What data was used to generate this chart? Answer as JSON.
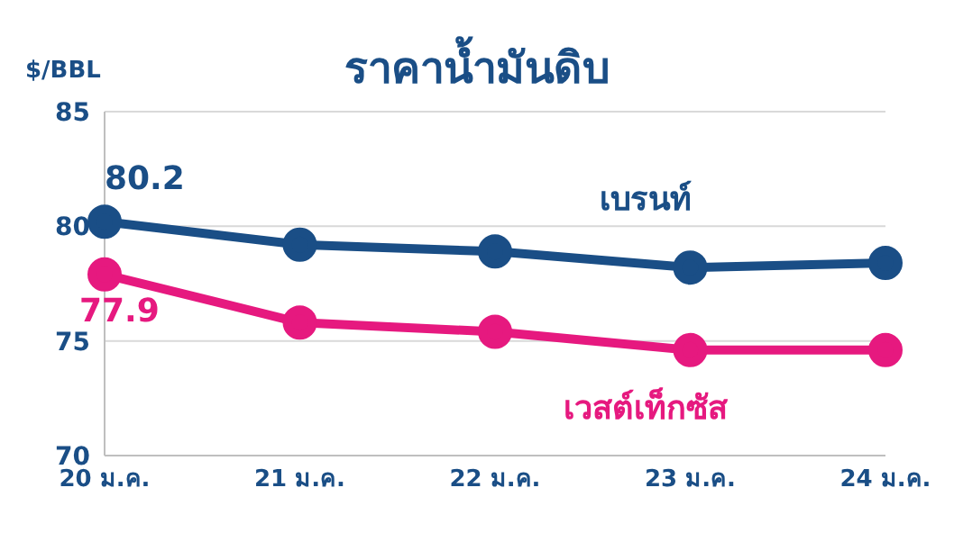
{
  "chart_data": {
    "type": "line",
    "title": "ราคาน้ำมันดิบ",
    "ylabel": "$/BBL",
    "categories": [
      "20 ม.ค.",
      "21 ม.ค.",
      "22 ม.ค.",
      "23 ม.ค.",
      "24 ม.ค."
    ],
    "series": [
      {
        "name": "เบรนท์",
        "color": "#1a4e86",
        "values": [
          80.2,
          79.2,
          78.9,
          78.2,
          78.4
        ],
        "value_labels": [
          "80.2",
          null,
          null,
          null,
          null
        ]
      },
      {
        "name": "เวสต์เท็กซัส",
        "color": "#e6197f",
        "values": [
          77.9,
          75.8,
          75.4,
          74.6,
          74.6
        ],
        "value_labels": [
          "77.9",
          null,
          null,
          null,
          null
        ]
      }
    ],
    "ylim": [
      70,
      85
    ],
    "yticks": [
      70,
      75,
      80,
      85
    ],
    "grid": "y",
    "legend": false,
    "marker": "circle",
    "line_style": "solid"
  }
}
